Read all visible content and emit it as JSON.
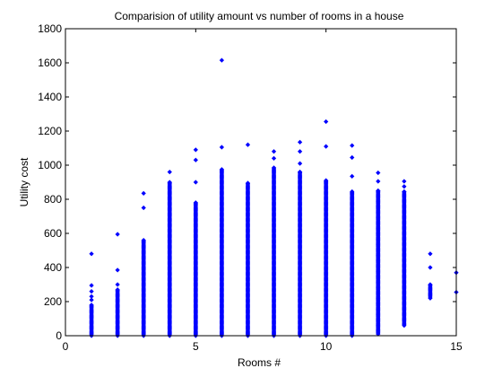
{
  "chart_data": {
    "type": "scatter",
    "title": "Comparision of utility amount vs number of rooms in a house",
    "xlabel": "Rooms #",
    "ylabel": "Utility cost",
    "xlim": [
      0,
      15
    ],
    "ylim": [
      0,
      1800
    ],
    "x_ticks": [
      "0",
      "5",
      "10",
      "15"
    ],
    "y_ticks": [
      "0",
      "200",
      "400",
      "600",
      "800",
      "1000",
      "1200",
      "1400",
      "1600",
      "1800"
    ],
    "grid": false,
    "marker": "diamond",
    "marker_color": "#0000ff",
    "series": [
      {
        "columns": [
          {
            "x": 1,
            "dense_range": [
              0,
              180
            ],
            "outliers": [
              210,
              230,
              260,
              295,
              480
            ]
          },
          {
            "x": 2,
            "dense_range": [
              0,
              270
            ],
            "outliers": [
              300,
              385,
              595
            ]
          },
          {
            "x": 3,
            "dense_range": [
              0,
              560
            ],
            "outliers": [
              750,
              835
            ]
          },
          {
            "x": 4,
            "dense_range": [
              0,
              900
            ],
            "outliers": [
              960
            ]
          },
          {
            "x": 5,
            "dense_range": [
              0,
              780
            ],
            "outliers": [
              900,
              1030,
              1090
            ]
          },
          {
            "x": 6,
            "dense_range": [
              0,
              975
            ],
            "outliers": [
              1105,
              1615
            ]
          },
          {
            "x": 7,
            "dense_range": [
              0,
              895
            ],
            "outliers": [
              1120
            ]
          },
          {
            "x": 8,
            "dense_range": [
              0,
              985
            ],
            "outliers": [
              1040,
              1080
            ]
          },
          {
            "x": 9,
            "dense_range": [
              0,
              960
            ],
            "outliers": [
              1010,
              1080,
              1135
            ]
          },
          {
            "x": 10,
            "dense_range": [
              0,
              910
            ],
            "outliers": [
              1110,
              1255
            ]
          },
          {
            "x": 11,
            "dense_range": [
              0,
              845
            ],
            "outliers": [
              935,
              1045,
              1115
            ]
          },
          {
            "x": 12,
            "dense_range": [
              10,
              850
            ],
            "outliers": [
              905,
              955
            ]
          },
          {
            "x": 13,
            "dense_range": [
              60,
              845
            ],
            "outliers": [
              875,
              905
            ]
          },
          {
            "x": 14,
            "dense_range": [
              220,
              300
            ],
            "outliers": [
              400,
              480
            ]
          },
          {
            "x": 15,
            "dense_range": [],
            "outliers": [
              255,
              370
            ]
          }
        ]
      }
    ]
  }
}
